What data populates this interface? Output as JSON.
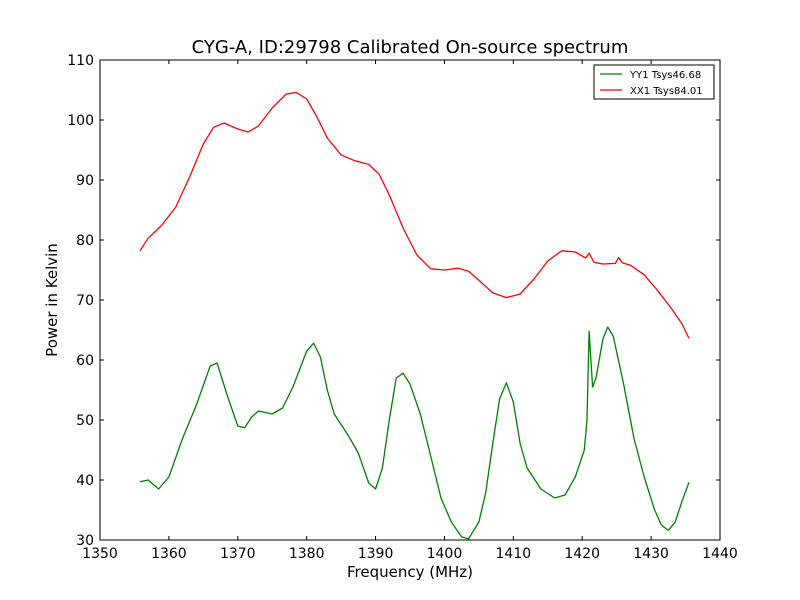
{
  "chart_data": {
    "type": "line",
    "title": "CYG-A, ID:29798 Calibrated On-source spectrum",
    "xlabel": "Frequency (MHz)",
    "ylabel": "Power in Kelvin",
    "xlim": [
      1350,
      1440
    ],
    "ylim": [
      30,
      110
    ],
    "xticks": [
      1350,
      1360,
      1370,
      1380,
      1390,
      1400,
      1410,
      1420,
      1430,
      1440
    ],
    "yticks": [
      30,
      40,
      50,
      60,
      70,
      80,
      90,
      100,
      110
    ],
    "grid": false,
    "legend_position": "top-right",
    "series": [
      {
        "name": "YY1 Tsys46.68",
        "color": "#008000",
        "points": [
          [
            1355.8,
            39.7
          ],
          [
            1357,
            40.0
          ],
          [
            1358.5,
            38.5
          ],
          [
            1360,
            40.5
          ],
          [
            1362,
            47.0
          ],
          [
            1364,
            52.5
          ],
          [
            1366,
            59.0
          ],
          [
            1367,
            59.5
          ],
          [
            1368.5,
            54.0
          ],
          [
            1370,
            49.0
          ],
          [
            1371,
            48.7
          ],
          [
            1372,
            50.5
          ],
          [
            1373,
            51.5
          ],
          [
            1375,
            51.0
          ],
          [
            1376.5,
            52.0
          ],
          [
            1378,
            55.5
          ],
          [
            1380,
            61.5
          ],
          [
            1381,
            62.8
          ],
          [
            1382,
            60.5
          ],
          [
            1383,
            55.0
          ],
          [
            1384,
            51.0
          ],
          [
            1386,
            47.5
          ],
          [
            1387.5,
            44.5
          ],
          [
            1389,
            39.5
          ],
          [
            1390,
            38.5
          ],
          [
            1391,
            42.0
          ],
          [
            1392,
            50.0
          ],
          [
            1393,
            57.0
          ],
          [
            1394,
            57.8
          ],
          [
            1395,
            56.0
          ],
          [
            1396.5,
            51.0
          ],
          [
            1398,
            44.0
          ],
          [
            1399.5,
            37.0
          ],
          [
            1401,
            33.0
          ],
          [
            1402.5,
            30.5
          ],
          [
            1403.5,
            30.2
          ],
          [
            1405,
            33.0
          ],
          [
            1406,
            38.0
          ],
          [
            1407,
            46.0
          ],
          [
            1408,
            53.5
          ],
          [
            1409,
            56.2
          ],
          [
            1410,
            53.0
          ],
          [
            1411,
            46.0
          ],
          [
            1412,
            42.0
          ],
          [
            1414,
            38.5
          ],
          [
            1416,
            37.0
          ],
          [
            1417.5,
            37.5
          ],
          [
            1419,
            40.5
          ],
          [
            1420.3,
            45.0
          ],
          [
            1420.7,
            50.0
          ],
          [
            1421,
            64.8
          ],
          [
            1421.5,
            55.5
          ],
          [
            1422,
            57.0
          ],
          [
            1423,
            63.5
          ],
          [
            1423.7,
            65.5
          ],
          [
            1424.5,
            64.0
          ],
          [
            1426,
            56.0
          ],
          [
            1427.5,
            47.0
          ],
          [
            1429,
            40.5
          ],
          [
            1430.5,
            35.0
          ],
          [
            1431.5,
            32.5
          ],
          [
            1432.5,
            31.6
          ],
          [
            1433.5,
            33.0
          ],
          [
            1434.5,
            36.5
          ],
          [
            1435.5,
            39.6
          ]
        ]
      },
      {
        "name": "XX1 Tsys84.01",
        "color": "#ff0000",
        "points": [
          [
            1355.8,
            78.2
          ],
          [
            1357,
            80.3
          ],
          [
            1359,
            82.5
          ],
          [
            1361,
            85.5
          ],
          [
            1363,
            90.5
          ],
          [
            1365,
            96.0
          ],
          [
            1366.5,
            98.8
          ],
          [
            1368,
            99.5
          ],
          [
            1370,
            98.5
          ],
          [
            1371.5,
            98.0
          ],
          [
            1373,
            99.0
          ],
          [
            1375,
            102.0
          ],
          [
            1377,
            104.3
          ],
          [
            1378.5,
            104.6
          ],
          [
            1380,
            103.5
          ],
          [
            1381.5,
            100.5
          ],
          [
            1383,
            97.0
          ],
          [
            1385,
            94.2
          ],
          [
            1387,
            93.2
          ],
          [
            1389,
            92.6
          ],
          [
            1390.5,
            91.0
          ],
          [
            1392,
            87.5
          ],
          [
            1394,
            82.0
          ],
          [
            1396,
            77.5
          ],
          [
            1398,
            75.2
          ],
          [
            1400,
            75.0
          ],
          [
            1402,
            75.3
          ],
          [
            1403.5,
            74.8
          ],
          [
            1405,
            73.3
          ],
          [
            1407,
            71.2
          ],
          [
            1409,
            70.4
          ],
          [
            1411,
            71.0
          ],
          [
            1413,
            73.5
          ],
          [
            1415,
            76.5
          ],
          [
            1417,
            78.2
          ],
          [
            1419,
            78.0
          ],
          [
            1420.5,
            77.0
          ],
          [
            1421,
            77.8
          ],
          [
            1421.7,
            76.3
          ],
          [
            1423,
            76.0
          ],
          [
            1424.8,
            76.1
          ],
          [
            1425.3,
            77.1
          ],
          [
            1425.8,
            76.2
          ],
          [
            1427,
            75.8
          ],
          [
            1429,
            74.2
          ],
          [
            1431,
            71.5
          ],
          [
            1433,
            68.5
          ],
          [
            1434.5,
            66.0
          ],
          [
            1435.5,
            63.6
          ]
        ]
      }
    ]
  }
}
